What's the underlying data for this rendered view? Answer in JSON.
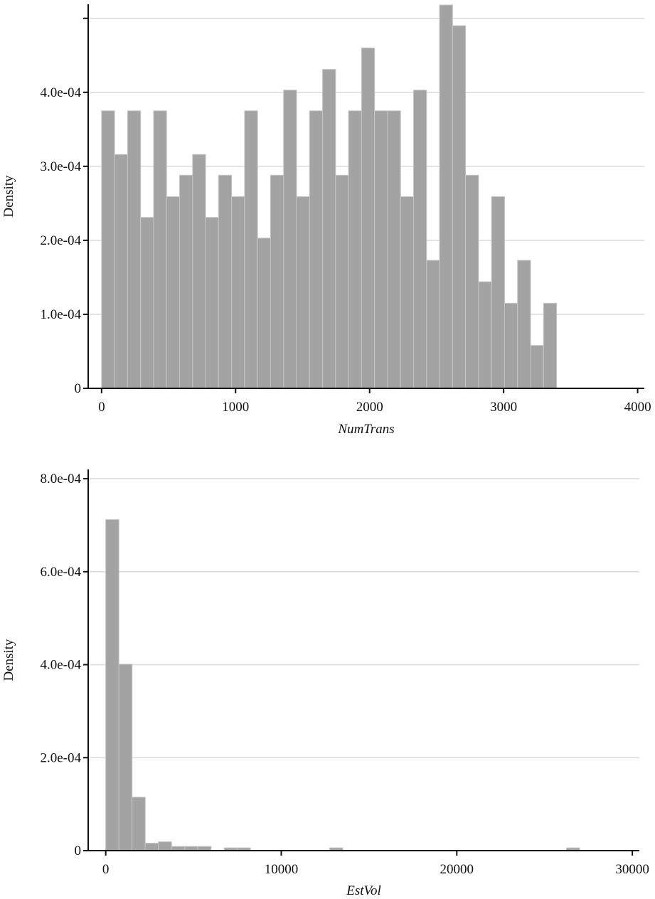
{
  "chart_data": [
    {
      "type": "bar",
      "xlabel": "NumTrans",
      "ylabel": "Density",
      "xlim": [
        -100,
        4050
      ],
      "ylim": [
        0,
        0.000519
      ],
      "x_ticks": [
        0,
        1000,
        2000,
        3000,
        4000
      ],
      "x_tick_labels": [
        "0",
        "1000",
        "2000",
        "3000",
        "4000"
      ],
      "y_ticks": [
        0,
        0.0001,
        0.0002,
        0.0003,
        0.0004
      ],
      "y_tick_labels": [
        "0",
        "1.0e-04",
        "2.0e-04",
        "3.0e-04",
        "4.0e-04"
      ],
      "y_ticks_unlabeled": [
        0.0005
      ],
      "grid": "horizontal",
      "bin_start": 0,
      "bin_width": 97,
      "values": [
        0.000375,
        0.000316,
        0.000375,
        0.000231,
        0.000375,
        0.000259,
        0.000288,
        0.000316,
        0.000231,
        0.000288,
        0.000259,
        0.000375,
        0.000203,
        0.000288,
        0.000403,
        0.000259,
        0.000375,
        0.000431,
        0.000288,
        0.000375,
        0.00046,
        0.000375,
        0.000375,
        0.000259,
        0.000403,
        0.000173,
        0.000518,
        0.00049,
        0.000288,
        0.000144,
        0.000259,
        0.000115,
        0.000173,
        5.8e-05,
        0.000115
      ]
    },
    {
      "type": "bar",
      "xlabel": "EstVol",
      "ylabel": "Density",
      "xlim": [
        -1000,
        30400
      ],
      "ylim": [
        0,
        0.00082
      ],
      "x_ticks": [
        0,
        10000,
        20000,
        30000
      ],
      "x_tick_labels": [
        "0",
        "10000",
        "20000",
        "30000"
      ],
      "y_ticks": [
        0,
        0.0002,
        0.0004,
        0.0006,
        0.0008
      ],
      "y_tick_labels": [
        "0",
        "2.0e-04",
        "4.0e-04",
        "6.0e-04",
        "8.0e-04"
      ],
      "grid": "horizontal",
      "bin_start": 0,
      "bin_width": 750,
      "values": [
        0.000712,
        0.000401,
        0.000115,
        1.6e-05,
        1.9e-05,
        9e-06,
        9e-06,
        9e-06,
        0,
        6e-06,
        6e-06,
        0,
        0,
        0,
        0,
        0,
        0,
        6e-06,
        0,
        0,
        0,
        0,
        0,
        0,
        0,
        0,
        0,
        0,
        0,
        0,
        0,
        0,
        0,
        0,
        0,
        6e-06
      ]
    }
  ]
}
